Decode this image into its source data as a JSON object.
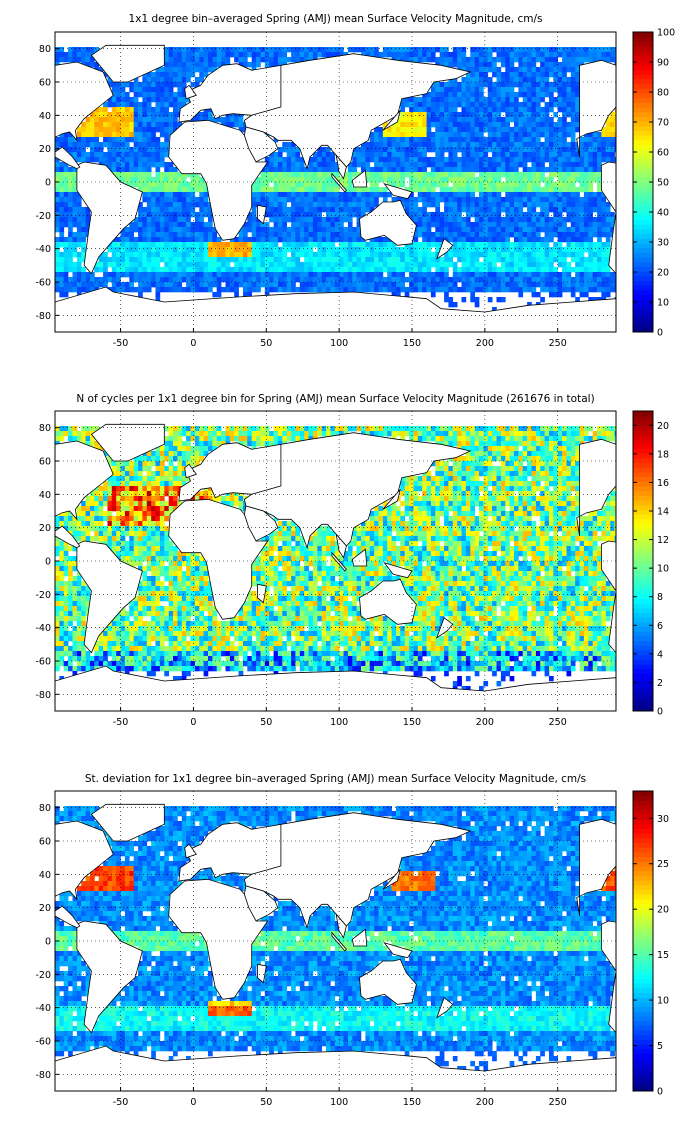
{
  "chart_data": [
    {
      "type": "heatmap",
      "title": "1x1 degree bin–averaged Spring (AMJ) mean Surface Velocity Magnitude, cm/s",
      "xlabel": "",
      "ylabel": "",
      "xlim": [
        -95,
        290
      ],
      "ylim": [
        -90,
        90
      ],
      "x_ticks": [
        -50,
        0,
        50,
        100,
        150,
        200,
        250
      ],
      "y_ticks": [
        -80,
        -60,
        -40,
        -20,
        0,
        20,
        40,
        60,
        80
      ],
      "grid": true,
      "colorbar": {
        "min": 0,
        "max": 100,
        "ticks": [
          0,
          10,
          20,
          30,
          40,
          50,
          60,
          70,
          80,
          90,
          100
        ]
      },
      "color_scale": "jet",
      "field": "velocity"
    },
    {
      "type": "heatmap",
      "title": "N of cycles per 1x1 degree bin for Spring (AMJ) mean Surface Velocity Magnitude (261676 in total)",
      "xlabel": "",
      "ylabel": "",
      "xlim": [
        -95,
        290
      ],
      "ylim": [
        -90,
        90
      ],
      "x_ticks": [
        -50,
        0,
        50,
        100,
        150,
        200,
        250
      ],
      "y_ticks": [
        -80,
        -60,
        -40,
        -20,
        0,
        20,
        40,
        60,
        80
      ],
      "grid": true,
      "colorbar": {
        "min": 0,
        "max": 21,
        "ticks": [
          0,
          2,
          4,
          6,
          8,
          10,
          12,
          14,
          16,
          18,
          20
        ]
      },
      "color_scale": "jet",
      "field": "cycles"
    },
    {
      "type": "heatmap",
      "title": "St. deviation for 1x1 degree bin–averaged Spring (AMJ) mean Surface Velocity Magnitude, cm/s",
      "xlabel": "",
      "ylabel": "",
      "xlim": [
        -95,
        290
      ],
      "ylim": [
        -90,
        90
      ],
      "x_ticks": [
        -50,
        0,
        50,
        100,
        150,
        200,
        250
      ],
      "y_ticks": [
        -80,
        -60,
        -40,
        -20,
        0,
        20,
        40,
        60,
        80
      ],
      "grid": true,
      "colorbar": {
        "min": 0,
        "max": 33,
        "ticks": [
          0,
          5,
          10,
          15,
          20,
          25,
          30
        ]
      },
      "color_scale": "jet",
      "field": "stdev"
    }
  ]
}
